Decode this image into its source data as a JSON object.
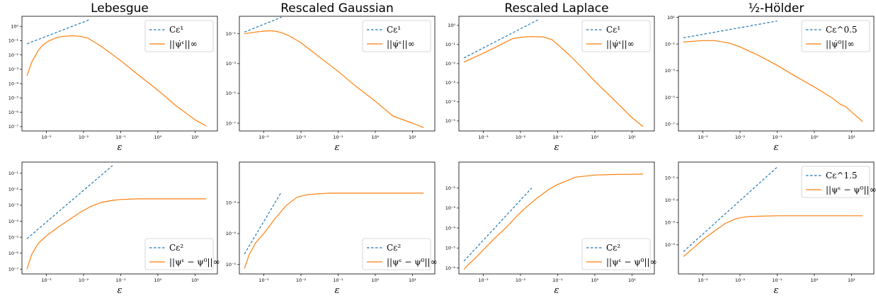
{
  "colors": {
    "reference": "#1f77b4",
    "measured": "#ff7f0e"
  },
  "chart_data": [
    {
      "type": "line",
      "title": "Lebesgue",
      "xlabel": "ε",
      "logx": true,
      "logy": true,
      "xlim": [
        0.00022,
        40
      ],
      "ylim": [
        5e-08,
        5
      ],
      "xticks": [
        "10⁻³",
        "10⁻²",
        "10⁻¹",
        "10⁰",
        "10¹"
      ],
      "yticks": [
        "10⁻⁷",
        "10⁻⁶",
        "10⁻⁵",
        "10⁻⁴",
        "10⁻³",
        "10⁻²",
        "10⁻¹",
        "10⁰"
      ],
      "legend_loc": "upper right",
      "series": [
        {
          "name": "Cε¹",
          "style": "dashed",
          "x": [
            0.0003,
            0.015
          ],
          "y": [
            0.06,
            3.0
          ]
        },
        {
          "name": "||ψ̇ᵋ||∞",
          "style": "solid",
          "x": [
            0.0003,
            0.0004,
            0.0006,
            0.0008,
            0.0012,
            0.002,
            0.003,
            0.005,
            0.008,
            0.013,
            0.03,
            0.1,
            0.3,
            1,
            3,
            10,
            20
          ],
          "y": [
            0.00035,
            0.003,
            0.02,
            0.05,
            0.1,
            0.17,
            0.2,
            0.22,
            0.2,
            0.15,
            0.04,
            0.004,
            0.0004,
            3.5e-05,
            3e-06,
            3e-07,
            1.1e-07
          ]
        }
      ]
    },
    {
      "type": "line",
      "title": "Rescaled Gaussian",
      "xlabel": "ε",
      "logx": true,
      "logy": true,
      "xlim": [
        0.00022,
        40
      ],
      "ylim": [
        3e-08,
        1.5
      ],
      "xticks": [
        "10⁻³",
        "10⁻²",
        "10⁻¹",
        "10⁰",
        "10¹"
      ],
      "yticks": [
        "10⁻⁷",
        "10⁻⁵",
        "10⁻³",
        "10⁻¹"
      ],
      "legend_loc": "upper right",
      "series": [
        {
          "name": "Cε¹",
          "style": "dashed",
          "x": [
            0.0003,
            0.003
          ],
          "y": [
            0.13,
            1.3
          ]
        },
        {
          "name": "||ψ̇ᵋ||∞",
          "style": "solid",
          "x": [
            0.0003,
            0.0006,
            0.001,
            0.0015,
            0.002,
            0.003,
            0.005,
            0.01,
            0.03,
            0.1,
            0.3,
            1,
            3,
            10,
            20
          ],
          "y": [
            0.1,
            0.13,
            0.15,
            0.16,
            0.15,
            0.12,
            0.07,
            0.025,
            0.003,
            0.0003,
            3e-05,
            3e-06,
            3e-07,
            1e-07,
            5e-08
          ]
        }
      ]
    },
    {
      "type": "line",
      "title": "Rescaled Laplace",
      "xlabel": "ε",
      "logx": true,
      "logy": true,
      "xlim": [
        0.00022,
        40
      ],
      "ylim": [
        3e-06,
        3
      ],
      "xticks": [
        "10⁻³",
        "10⁻²",
        "10⁻¹",
        "10⁰",
        "10¹"
      ],
      "yticks": [
        "10⁻⁵",
        "10⁻⁴",
        "10⁻³",
        "10⁻²",
        "10⁻¹",
        "10⁰"
      ],
      "legend_loc": "upper right",
      "series": [
        {
          "name": "Cε¹",
          "style": "dashed",
          "x": [
            0.0003,
            0.03
          ],
          "y": [
            0.02,
            2.0
          ]
        },
        {
          "name": "||ψ̇ᵋ||∞",
          "style": "solid",
          "x": [
            0.0003,
            0.001,
            0.003,
            0.006,
            0.01,
            0.02,
            0.04,
            0.07,
            0.1,
            0.2,
            0.5,
            1,
            3,
            10,
            20
          ],
          "y": [
            0.012,
            0.035,
            0.1,
            0.2,
            0.24,
            0.26,
            0.25,
            0.18,
            0.1,
            0.03,
            0.005,
            0.0012,
            0.00015,
            1.5e-05,
            5e-06
          ]
        }
      ]
    },
    {
      "type": "line",
      "title": "½-Hölder",
      "xlabel": "ε",
      "logx": true,
      "logy": true,
      "xlim": [
        0.00022,
        40
      ],
      "ylim": [
        3e-08,
        12
      ],
      "xticks": [
        "10⁻³",
        "10⁻²",
        "10⁻¹",
        "10⁰",
        "10¹"
      ],
      "yticks": [
        "10⁻⁷",
        "10⁻⁵",
        "10⁻³",
        "10⁻¹",
        "10¹"
      ],
      "legend_loc": "upper right",
      "series": [
        {
          "name": "Cε^0.5",
          "style": "dashed",
          "x": [
            0.0003,
            0.1
          ],
          "y": [
            0.29,
            5.3
          ]
        },
        {
          "name": "||ψ̇⁰||∞",
          "style": "solid",
          "x": [
            0.0003,
            0.001,
            0.002,
            0.005,
            0.01,
            0.03,
            0.1,
            0.3,
            1,
            3,
            5,
            7,
            10,
            20
          ],
          "y": [
            0.14,
            0.18,
            0.18,
            0.12,
            0.06,
            0.015,
            0.0025,
            0.0004,
            6e-05,
            9e-06,
            3e-06,
            2e-06,
            8e-07,
            1.5e-07
          ]
        }
      ]
    },
    {
      "type": "line",
      "xlabel": "ε",
      "logx": true,
      "logy": true,
      "xlim": [
        0.00022,
        40
      ],
      "ylim": [
        5e-08,
        0.5
      ],
      "xticks": [
        "10⁻³",
        "10⁻²",
        "10⁻¹",
        "10⁰",
        "10¹"
      ],
      "yticks": [
        "10⁻⁷",
        "10⁻⁶",
        "10⁻⁵",
        "10⁻⁴",
        "10⁻³",
        "10⁻²",
        "10⁻¹"
      ],
      "legend_loc": "lower right",
      "series": [
        {
          "name": "Cε²",
          "style": "dashed",
          "x": [
            0.0003,
            0.06
          ],
          "y": [
            8e-06,
            0.3
          ]
        },
        {
          "name": "||ψᵋ − ψ⁰||∞",
          "style": "solid",
          "x": [
            0.0003,
            0.0004,
            0.0006,
            0.001,
            0.002,
            0.004,
            0.008,
            0.015,
            0.03,
            0.06,
            0.1,
            0.3,
            1,
            20
          ],
          "y": [
            1e-07,
            8e-07,
            4e-06,
            1.2e-05,
            4e-05,
            0.00012,
            0.00035,
            0.0008,
            0.0015,
            0.002,
            0.0023,
            0.0025,
            0.0025,
            0.0025
          ]
        }
      ]
    },
    {
      "type": "line",
      "xlabel": "ε",
      "logx": true,
      "logy": true,
      "xlim": [
        0.00022,
        40
      ],
      "ylim": [
        5e-06,
        0.02
      ],
      "xticks": [
        "10⁻³",
        "10⁻²",
        "10⁻¹",
        "10⁰",
        "10¹"
      ],
      "yticks": [
        "10⁻⁵",
        "10⁻⁴",
        "10⁻³"
      ],
      "legend_loc": "lower right",
      "series": [
        {
          "name": "Cε²",
          "style": "dashed",
          "x": [
            0.0003,
            0.003
          ],
          "y": [
            2.2e-05,
            0.0022
          ]
        },
        {
          "name": "||ψᵋ − ψ⁰||∞",
          "style": "solid",
          "x": [
            0.0003,
            0.0004,
            0.0006,
            0.001,
            0.002,
            0.004,
            0.008,
            0.015,
            0.03,
            0.06,
            0.1,
            0.3,
            1,
            20
          ],
          "y": [
            7.5e-06,
            2e-05,
            5e-05,
            0.0001,
            0.0003,
            0.0008,
            0.0015,
            0.0018,
            0.0019,
            0.002,
            0.002,
            0.002,
            0.002,
            0.002
          ]
        }
      ]
    },
    {
      "type": "line",
      "xlabel": "ε",
      "logx": true,
      "logy": true,
      "xlim": [
        0.00022,
        40
      ],
      "ylim": [
        5e-07,
        0.2
      ],
      "xticks": [
        "10⁻³",
        "10⁻²",
        "10⁻¹",
        "10⁰",
        "10¹"
      ],
      "yticks": [
        "10⁻⁶",
        "10⁻⁵",
        "10⁻⁴",
        "10⁻³",
        "10⁻²"
      ],
      "legend_loc": "lower right",
      "series": [
        {
          "name": "Cε²",
          "style": "dashed",
          "x": [
            0.0003,
            0.02
          ],
          "y": [
            2.2e-06,
            0.01
          ]
        },
        {
          "name": "||ψᵋ − ψ⁰||∞",
          "style": "solid",
          "x": [
            0.0003,
            0.0004,
            0.0006,
            0.001,
            0.002,
            0.004,
            0.008,
            0.015,
            0.03,
            0.06,
            0.1,
            0.3,
            1,
            3,
            20
          ],
          "y": [
            8.5e-07,
            1.5e-06,
            3e-06,
            8e-06,
            3e-05,
            0.0001,
            0.0004,
            0.0012,
            0.0035,
            0.009,
            0.015,
            0.035,
            0.045,
            0.048,
            0.05
          ]
        }
      ]
    },
    {
      "type": "line",
      "xlabel": "ε",
      "logx": true,
      "logy": true,
      "xlim": [
        0.00022,
        40
      ],
      "ylim": [
        5e-06,
        0.5
      ],
      "xticks": [
        "10⁻³",
        "10⁻²",
        "10⁻¹",
        "10⁰",
        "10¹"
      ],
      "yticks": [
        "10⁻⁴",
        "10⁻³",
        "10⁻²",
        "10⁻¹"
      ],
      "legend_loc": "upper right",
      "series": [
        {
          "name": "Cε^1.5",
          "style": "dashed",
          "x": [
            0.0003,
            0.1
          ],
          "y": [
            5e-05,
            0.3
          ]
        },
        {
          "name": "||ψᵋ − ψ⁰||∞",
          "style": "solid",
          "x": [
            0.0003,
            0.0006,
            0.001,
            0.002,
            0.004,
            0.008,
            0.015,
            0.03,
            0.1,
            20
          ],
          "y": [
            3e-05,
            8e-05,
            0.00017,
            0.0004,
            0.0009,
            0.0015,
            0.0018,
            0.0019,
            0.002,
            0.002
          ]
        }
      ]
    }
  ]
}
